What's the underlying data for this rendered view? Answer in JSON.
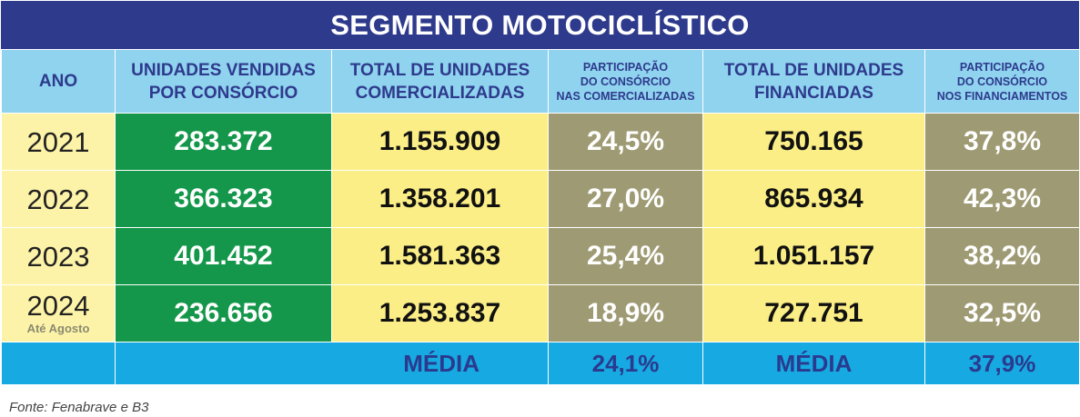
{
  "title": "SEGMENTO MOTOCICLÍSTICO",
  "source": "Fonte: Fenabrave e B3",
  "headers": {
    "ano": "ANO",
    "consorcio": [
      "UNIDADES VENDIDAS",
      "POR CONSÓRCIO"
    ],
    "comercializadas": [
      "TOTAL DE UNIDADES",
      "COMERCIALIZADAS"
    ],
    "part_comercializadas": [
      "PARTICIPAÇÃO",
      "DO CONSÓRCIO",
      "NAS COMERCIALIZADAS"
    ],
    "financiadas": [
      "TOTAL DE UNIDADES",
      "FINANCIADAS"
    ],
    "part_financiamentos": [
      "PARTICIPAÇÃO",
      "DO CONSÓRCIO",
      "NOS FINANCIAMENTOS"
    ]
  },
  "rows": [
    {
      "year": "2021",
      "note": "",
      "consorcio": "283.372",
      "comercializadas": "1.155.909",
      "part_com": "24,5%",
      "financiadas": "750.165",
      "part_fin": "37,8%"
    },
    {
      "year": "2022",
      "note": "",
      "consorcio": "366.323",
      "comercializadas": "1.358.201",
      "part_com": "27,0%",
      "financiadas": "865.934",
      "part_fin": "42,3%"
    },
    {
      "year": "2023",
      "note": "",
      "consorcio": "401.452",
      "comercializadas": "1.581.363",
      "part_com": "25,4%",
      "financiadas": "1.051.157",
      "part_fin": "38,2%"
    },
    {
      "year": "2024",
      "note": "Até Agosto",
      "consorcio": "236.656",
      "comercializadas": "1.253.837",
      "part_com": "18,9%",
      "financiadas": "727.751",
      "part_fin": "32,5%"
    }
  ],
  "footer": {
    "label1": "MÉDIA",
    "value1": "24,1%",
    "label2": "MÉDIA",
    "value2": "37,9%"
  },
  "colors": {
    "banner": "#2e3a8c",
    "header": "#8fd3ef",
    "year": "#fdf3a8",
    "consorcio": "#14974a",
    "comercializadas": "#fbee86",
    "participacao": "#9e9a73",
    "footer": "#17a9e2"
  },
  "chart_data": {
    "type": "table",
    "title": "SEGMENTO MOTOCICLÍSTICO",
    "columns": [
      "ANO",
      "UNIDADES VENDIDAS POR CONSÓRCIO",
      "TOTAL DE UNIDADES COMERCIALIZADAS",
      "PARTICIPAÇÃO DO CONSÓRCIO NAS COMERCIALIZADAS",
      "TOTAL DE UNIDADES FINANCIADAS",
      "PARTICIPAÇÃO DO CONSÓRCIO NOS FINANCIAMENTOS"
    ],
    "rows": [
      [
        "2021",
        "283.372",
        "1.155.909",
        "24,5%",
        "750.165",
        "37,8%"
      ],
      [
        "2022",
        "366.323",
        "1.358.201",
        "27,0%",
        "865.934",
        "42,3%"
      ],
      [
        "2023",
        "401.452",
        "1.581.363",
        "25,4%",
        "1.051.157",
        "38,2%"
      ],
      [
        "2024 Até Agosto",
        "236.656",
        "1.253.837",
        "18,9%",
        "727.751",
        "32,5%"
      ]
    ],
    "footer": [
      "",
      "",
      "MÉDIA",
      "24,1%",
      "MÉDIA",
      "37,9%"
    ]
  }
}
